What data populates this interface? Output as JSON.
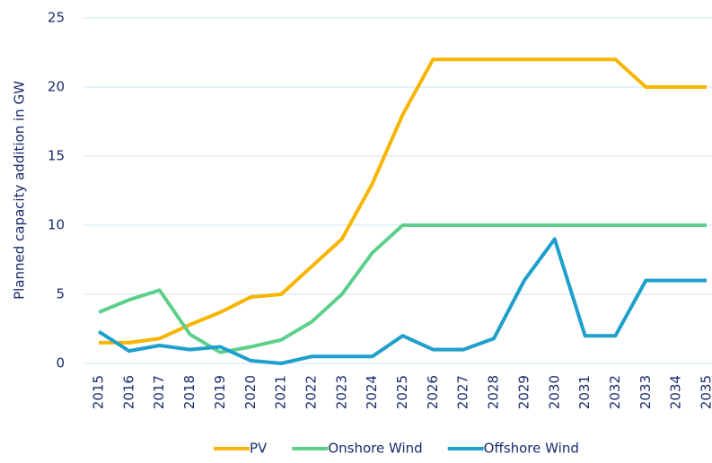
{
  "chart_data": {
    "type": "line",
    "y_label": "Planned capacity addition in GW",
    "categories": [
      "2015",
      "2016",
      "2017",
      "2018",
      "2019",
      "2020",
      "2021",
      "2022",
      "2023",
      "2024",
      "2025",
      "2026",
      "2027",
      "2028",
      "2029",
      "2030",
      "2031",
      "2032",
      "2033",
      "2034",
      "2035"
    ],
    "series": [
      {
        "name": "PV",
        "color": "#f7b500",
        "values": [
          1.5,
          1.5,
          1.8,
          2.8,
          3.7,
          4.8,
          5.0,
          7.0,
          9.0,
          13.0,
          18.0,
          22,
          22,
          22,
          22,
          22,
          22,
          22,
          20,
          20,
          20
        ]
      },
      {
        "name": "Onshore Wind",
        "color": "#5ccf8b",
        "values": [
          3.7,
          4.6,
          5.3,
          2.1,
          0.8,
          1.2,
          1.7,
          3.0,
          5.0,
          8.0,
          10,
          10,
          10,
          10,
          10,
          10,
          10,
          10,
          10,
          10,
          10
        ]
      },
      {
        "name": "Offshore Wind",
        "color": "#1e9fcc",
        "values": [
          2.3,
          0.9,
          1.3,
          1.0,
          1.2,
          0.2,
          0.0,
          0.5,
          0.5,
          0.5,
          2.0,
          1.0,
          1.0,
          1.8,
          6.0,
          9.0,
          2.0,
          2.0,
          6.0,
          6.0,
          6.0
        ]
      }
    ],
    "ylim": [
      0,
      25
    ],
    "yticks": [
      0,
      5,
      10,
      15,
      20,
      25
    ],
    "grid": true,
    "legend": "bottom"
  }
}
